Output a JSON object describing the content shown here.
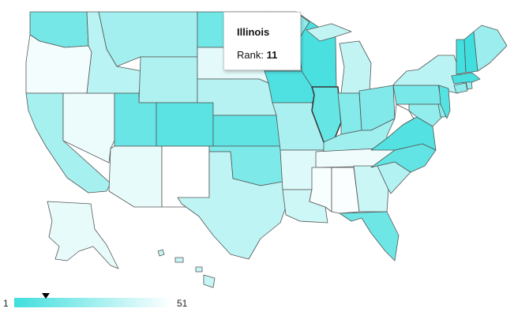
{
  "tooltip": {
    "title": "Illinois",
    "rank_label": "Rank: ",
    "rank_value": "11"
  },
  "legend": {
    "min": "1",
    "max": "51",
    "color_low": "#40dede",
    "color_high": "#ffffff",
    "marker_value": 11
  },
  "colors": {
    "state_stroke": "#555555",
    "highlight_stroke": "#333333"
  },
  "states": [
    {
      "name": "Washington",
      "rank": 15
    },
    {
      "name": "Oregon",
      "rank": 48
    },
    {
      "name": "California",
      "rank": 28
    },
    {
      "name": "Nevada",
      "rank": 46
    },
    {
      "name": "Idaho",
      "rank": 33
    },
    {
      "name": "Montana",
      "rank": 27
    },
    {
      "name": "Wyoming",
      "rank": 30
    },
    {
      "name": "Utah",
      "rank": 12
    },
    {
      "name": "Arizona",
      "rank": 45
    },
    {
      "name": "Colorado",
      "rank": 8
    },
    {
      "name": "New Mexico",
      "rank": 51
    },
    {
      "name": "North Dakota",
      "rank": 14
    },
    {
      "name": "South Dakota",
      "rank": 44
    },
    {
      "name": "Nebraska",
      "rank": 32
    },
    {
      "name": "Kansas",
      "rank": 9
    },
    {
      "name": "Oklahoma",
      "rank": 17
    },
    {
      "name": "Texas",
      "rank": 34
    },
    {
      "name": "Minnesota",
      "rank": 21
    },
    {
      "name": "Iowa",
      "rank": 5
    },
    {
      "name": "Missouri",
      "rank": 29
    },
    {
      "name": "Arkansas",
      "rank": 42
    },
    {
      "name": "Louisiana",
      "rank": 38
    },
    {
      "name": "Wisconsin",
      "rank": 4
    },
    {
      "name": "Illinois",
      "rank": 11
    },
    {
      "name": "Michigan",
      "rank": 35
    },
    {
      "name": "Indiana",
      "rank": 19
    },
    {
      "name": "Ohio",
      "rank": 18
    },
    {
      "name": "Kentucky",
      "rank": 26
    },
    {
      "name": "Tennessee",
      "rank": 47
    },
    {
      "name": "Mississippi",
      "rank": 49
    },
    {
      "name": "Alabama",
      "rank": 50
    },
    {
      "name": "Georgia",
      "rank": 37
    },
    {
      "name": "Florida",
      "rank": 13
    },
    {
      "name": "South Carolina",
      "rank": 31
    },
    {
      "name": "North Carolina",
      "rank": 10
    },
    {
      "name": "Virginia",
      "rank": 6
    },
    {
      "name": "West Virginia",
      "rank": 51
    },
    {
      "name": "Pennsylvania",
      "rank": 16
    },
    {
      "name": "New York",
      "rank": 33
    },
    {
      "name": "Maryland",
      "rank": 23
    },
    {
      "name": "Delaware",
      "rank": 20
    },
    {
      "name": "New Jersey",
      "rank": 7
    },
    {
      "name": "Connecticut",
      "rank": 22
    },
    {
      "name": "Rhode Island",
      "rank": 24
    },
    {
      "name": "Massachusetts",
      "rank": 3
    },
    {
      "name": "Vermont",
      "rank": 2
    },
    {
      "name": "New Hampshire",
      "rank": 1
    },
    {
      "name": "Maine",
      "rank": 25
    },
    {
      "name": "Alaska",
      "rank": 45
    },
    {
      "name": "Hawaii",
      "rank": 36
    }
  ]
}
